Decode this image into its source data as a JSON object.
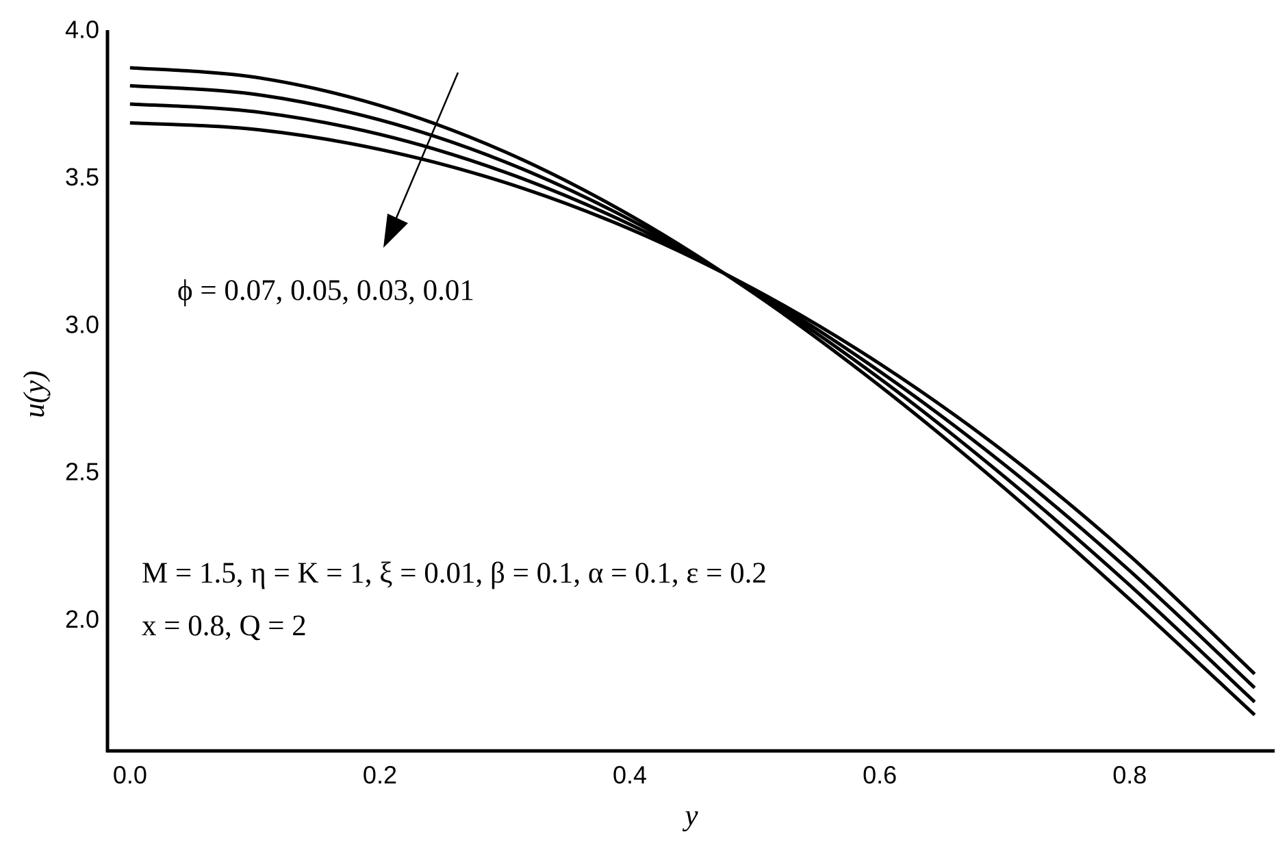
{
  "chart_data": {
    "type": "line",
    "x_label": "y",
    "y_label": "u(y)",
    "annotations": [
      "ϕ = 0.07, 0.05, 0.03, 0.01",
      "M  = 1.5, η = K = 1, ξ = 0.01, β = 0.1, α = 0.1, ε = 0.2",
      "x = 0.8, Q = 2"
    ],
    "x": [
      0,
      0.1,
      0.2,
      0.3,
      0.4,
      0.5,
      0.6,
      0.7,
      0.8,
      0.9
    ],
    "series": [
      {
        "color": "#000000",
        "values": [
          3.877,
          3.845,
          3.749,
          3.592,
          3.377,
          3.11,
          2.798,
          2.45,
          2.074,
          1.682
        ]
      },
      {
        "color": "#000000",
        "values": [
          3.816,
          3.787,
          3.7,
          3.558,
          3.362,
          3.115,
          2.823,
          2.489,
          2.122,
          1.726
        ]
      },
      {
        "color": "#000000",
        "values": [
          3.754,
          3.728,
          3.651,
          3.523,
          3.346,
          3.12,
          2.847,
          2.53,
          2.171,
          1.774
        ]
      },
      {
        "color": "#000000",
        "values": [
          3.69,
          3.668,
          3.6,
          3.488,
          3.33,
          3.125,
          2.873,
          2.573,
          2.222,
          1.821
        ]
      }
    ],
    "xlim": [
      -0.018,
      0.916
    ],
    "ylim": [
      1.56,
      4.0
    ],
    "xticks": [
      {
        "value": 0,
        "label": "0.0"
      },
      0.2,
      0.4,
      0.6,
      0.8
    ],
    "yticks": [
      {
        "value": 2,
        "label": "2.0"
      },
      2.5,
      {
        "value": 3,
        "label": "3.0"
      },
      3.5,
      {
        "value": 4,
        "label": "4.0"
      }
    ],
    "grid": false
  }
}
